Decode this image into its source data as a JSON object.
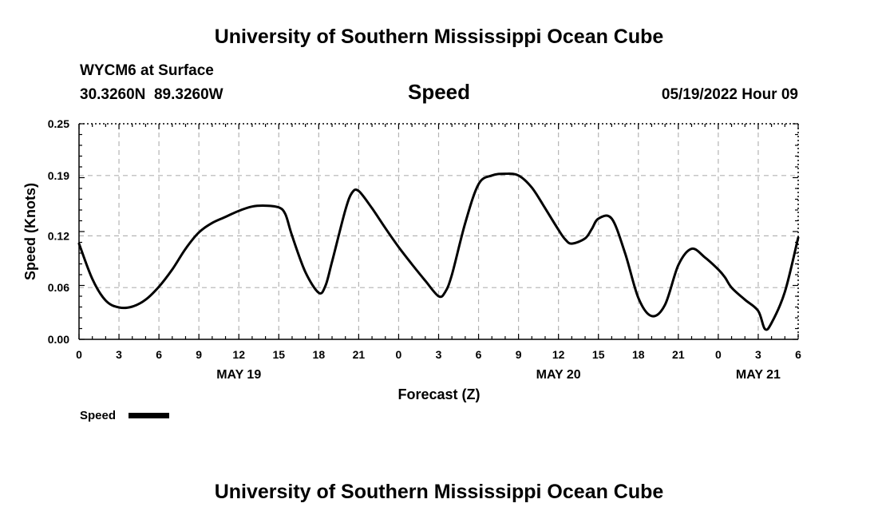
{
  "header": {
    "title_top": "University of Southern Mississippi Ocean Cube",
    "station": "WYCM6 at Surface",
    "coords": "30.3260N  89.3260W",
    "datetime": "05/19/2022 Hour 09",
    "title_bottom": "University of Southern Mississippi Ocean Cube"
  },
  "chart_data": {
    "type": "line",
    "title": "Speed",
    "xlabel": "Forecast (Z)",
    "ylabel": "Speed (Knots)",
    "ylim": [
      0,
      0.25
    ],
    "yticks": [
      "0.00",
      "0.06",
      "0.12",
      "0.19",
      "0.25"
    ],
    "xlim": [
      0,
      54
    ],
    "xtick_hours": [
      0,
      3,
      6,
      9,
      12,
      15,
      18,
      21,
      24,
      27,
      30,
      33,
      36,
      39,
      42,
      45,
      48,
      51,
      54
    ],
    "xtick_labels": [
      "0",
      "3",
      "6",
      "9",
      "12",
      "15",
      "18",
      "21",
      "0",
      "3",
      "6",
      "9",
      "12",
      "15",
      "18",
      "21",
      "0",
      "3",
      "6"
    ],
    "date_labels": [
      {
        "hour": 12,
        "label": "MAY 19"
      },
      {
        "hour": 36,
        "label": "MAY 20"
      },
      {
        "hour": 51,
        "label": "MAY 21"
      }
    ],
    "grid": true,
    "legend": {
      "placement": "bottom-left",
      "label": "Speed"
    },
    "series": [
      {
        "name": "Speed",
        "color": "#000000",
        "x": [
          0,
          1,
          2,
          3,
          4,
          5,
          6,
          7,
          8,
          9,
          10,
          11,
          12,
          13,
          14,
          15,
          15.5,
          16,
          17,
          18,
          18.5,
          19,
          20,
          20.5,
          21,
          22,
          23,
          24,
          25,
          26,
          27,
          27.5,
          28,
          29,
          30,
          31,
          32,
          33,
          34,
          35,
          36,
          36.5,
          37,
          38,
          38.5,
          39,
          40,
          41,
          42,
          43,
          44,
          45,
          46,
          47,
          48,
          48.5,
          49,
          50,
          51,
          51.5,
          52,
          53,
          54
        ],
        "y": [
          0.111,
          0.07,
          0.045,
          0.037,
          0.038,
          0.046,
          0.061,
          0.081,
          0.105,
          0.124,
          0.135,
          0.142,
          0.149,
          0.154,
          0.155,
          0.153,
          0.145,
          0.12,
          0.078,
          0.054,
          0.062,
          0.09,
          0.15,
          0.17,
          0.172,
          0.152,
          0.129,
          0.107,
          0.087,
          0.068,
          0.05,
          0.055,
          0.075,
          0.135,
          0.18,
          0.19,
          0.192,
          0.19,
          0.176,
          0.152,
          0.127,
          0.116,
          0.111,
          0.117,
          0.128,
          0.14,
          0.14,
          0.1,
          0.048,
          0.027,
          0.04,
          0.086,
          0.105,
          0.095,
          0.081,
          0.072,
          0.06,
          0.046,
          0.033,
          0.012,
          0.019,
          0.055,
          0.118
        ]
      }
    ]
  }
}
